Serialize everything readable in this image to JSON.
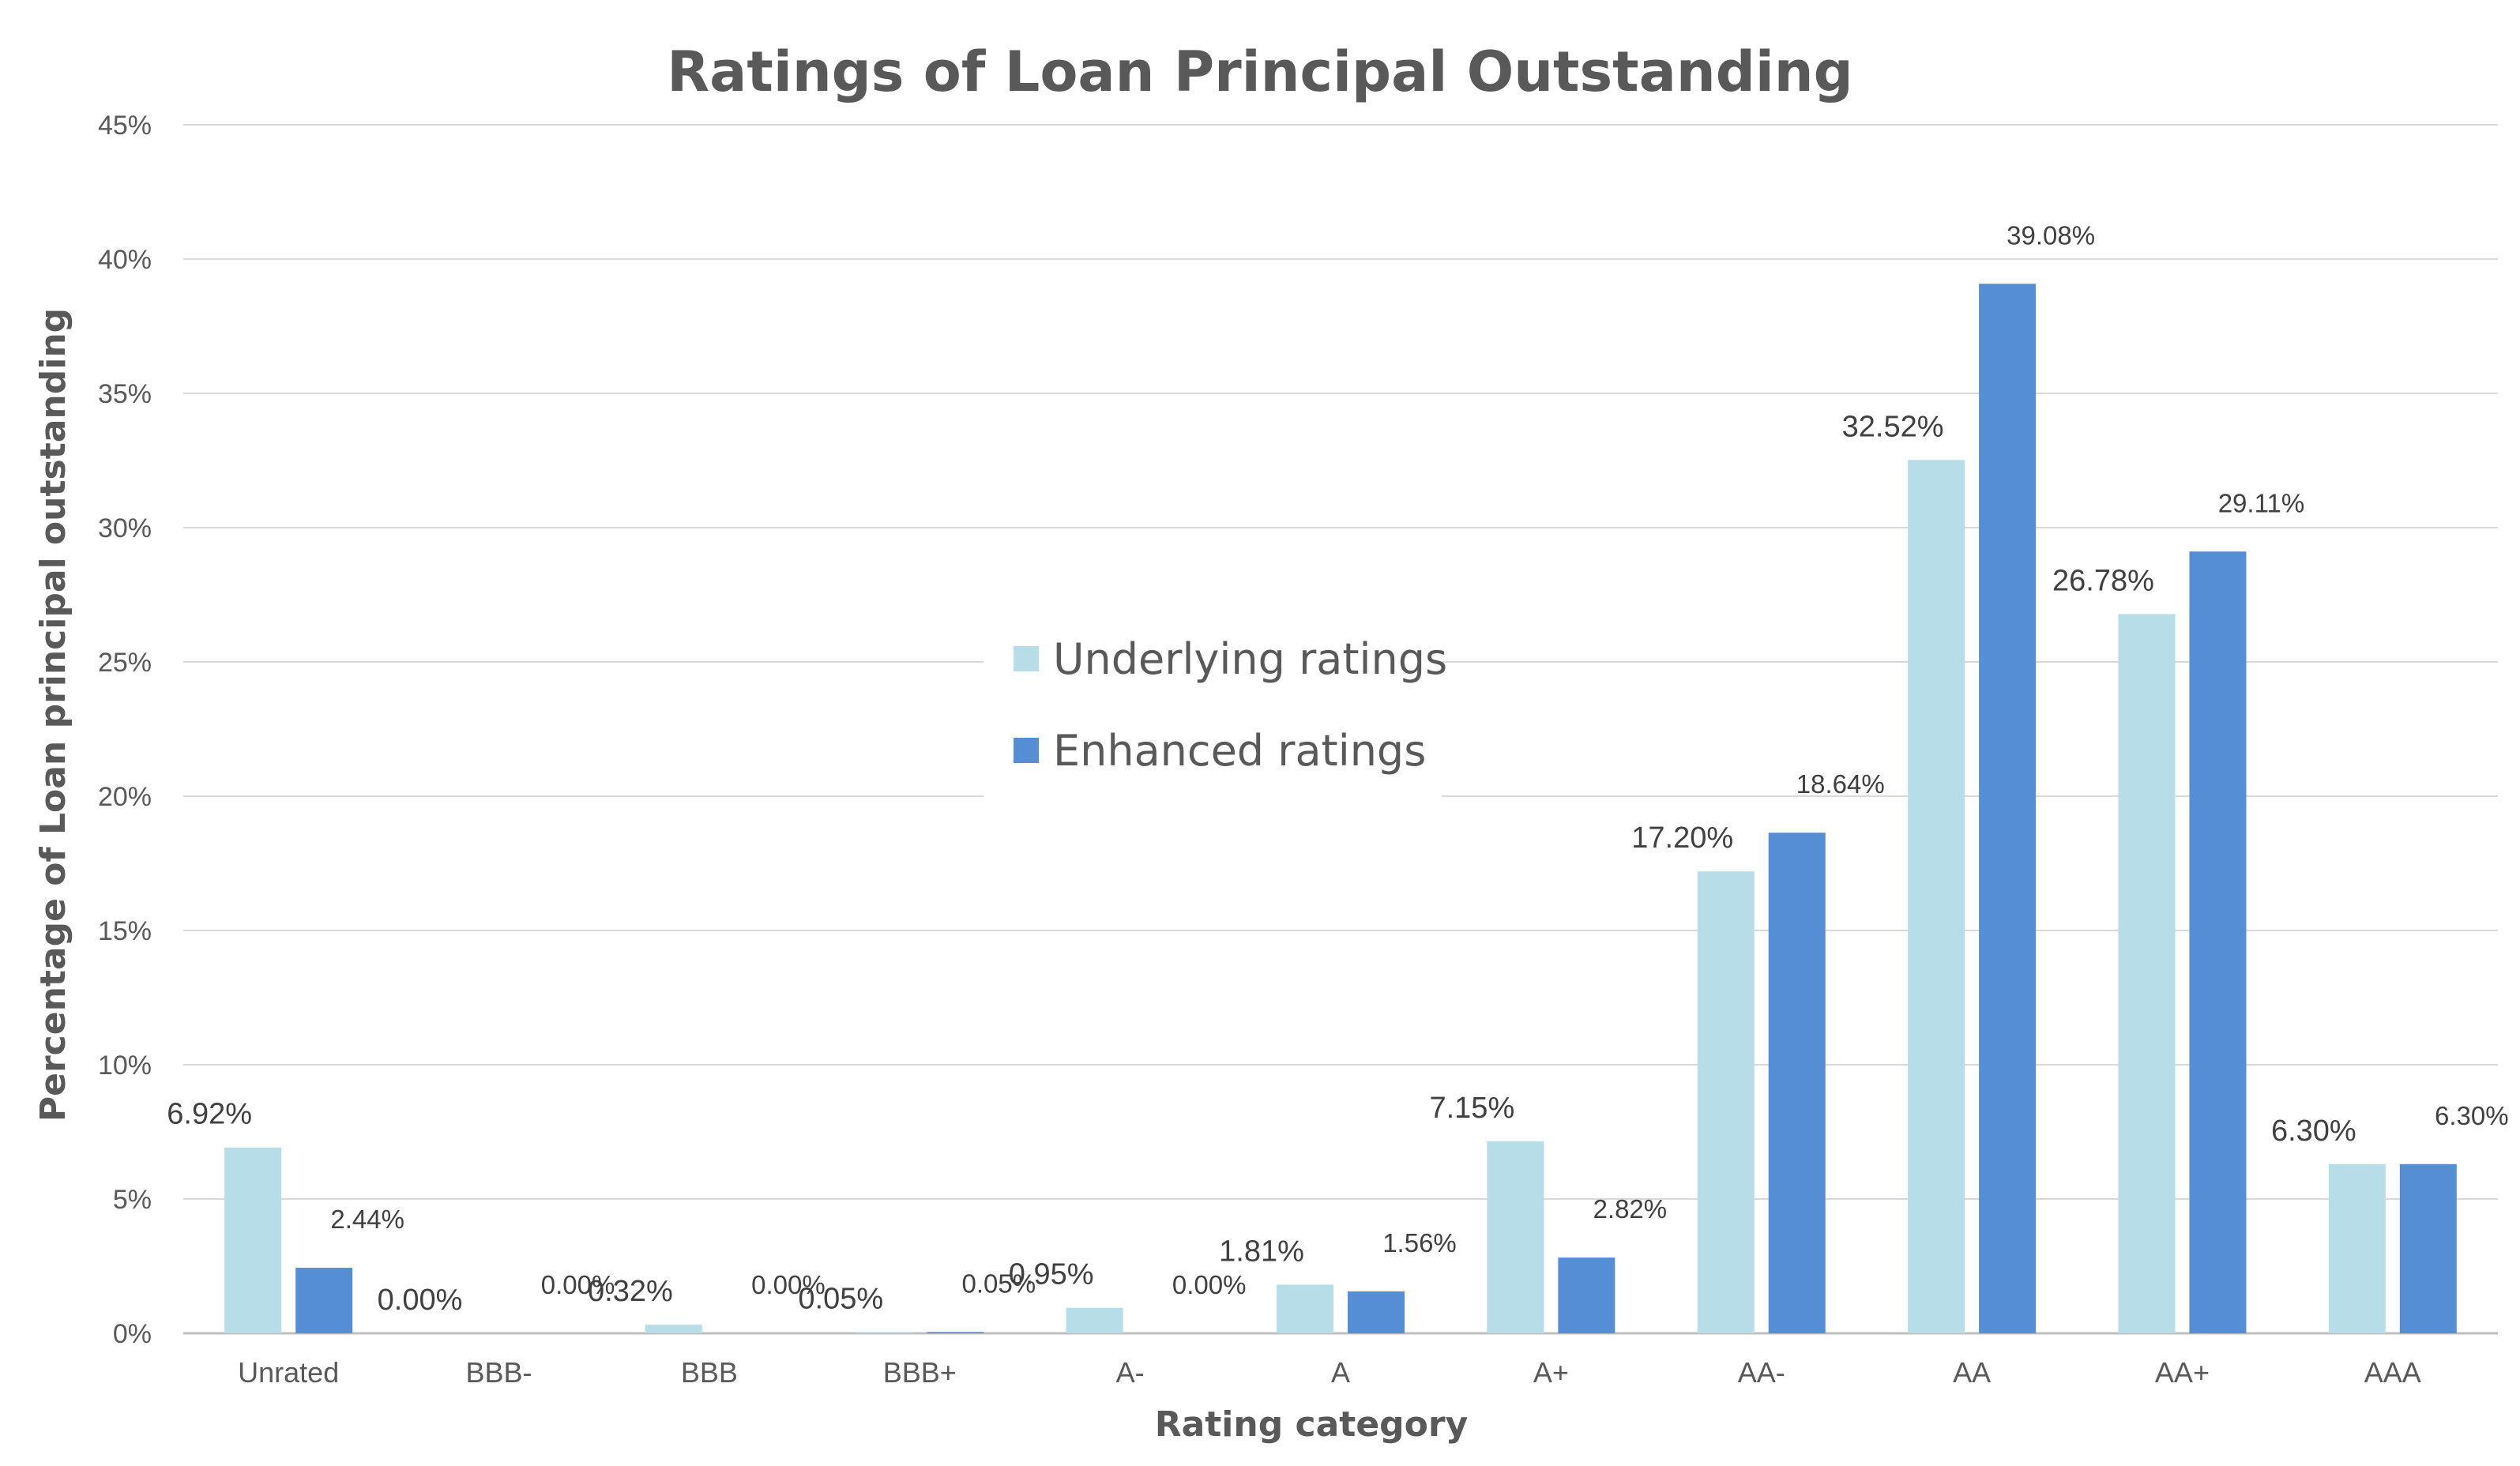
{
  "chart_data": {
    "type": "bar",
    "title": "Ratings of Loan Principal Outstanding",
    "xlabel": "Rating category",
    "ylabel": "Percentage of Loan principal outstanding",
    "ylim": [
      0,
      45
    ],
    "yticks": [
      "0%",
      "5%",
      "10%",
      "15%",
      "20%",
      "25%",
      "30%",
      "35%",
      "40%",
      "45%"
    ],
    "grid": true,
    "legend_position": "center",
    "categories": [
      "Unrated",
      "BBB-",
      "BBB",
      "BBB+",
      "A-",
      "A",
      "A+",
      "AA-",
      "AA",
      "AA+",
      "AAA"
    ],
    "series": [
      {
        "name": "Underlying ratings",
        "color": "#b7dde8",
        "values": [
          6.92,
          0.0,
          0.32,
          0.05,
          0.95,
          1.81,
          7.15,
          17.2,
          32.52,
          26.78,
          6.3
        ],
        "labels": [
          "6.92%",
          "0.00%",
          "0.32%",
          "0.05%",
          "0.95%",
          "1.81%",
          "7.15%",
          "17.20%",
          "32.52%",
          "26.78%",
          "6.30%"
        ]
      },
      {
        "name": "Enhanced ratings",
        "color": "#558ed5",
        "values": [
          2.44,
          0.0,
          0.0,
          0.05,
          0.0,
          1.56,
          2.82,
          18.64,
          39.08,
          29.11,
          6.3
        ],
        "labels": [
          "2.44%",
          "0.00%",
          "0.00%",
          "0.05%",
          "0.00%",
          "1.56%",
          "2.82%",
          "18.64%",
          "39.08%",
          "29.11%",
          "6.30%"
        ]
      }
    ]
  }
}
